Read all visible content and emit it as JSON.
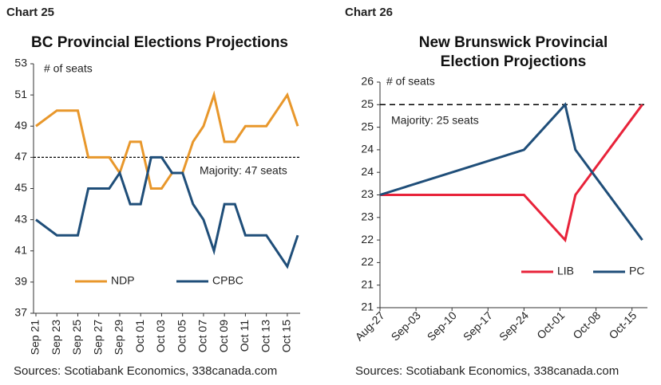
{
  "chart_data": [
    {
      "type": "line",
      "chart_label": "Chart 25",
      "title": "BC Provincial Elections Projections",
      "y_label": "# of seats",
      "categories": [
        "Sep 21",
        null,
        "Sep 23",
        null,
        "Sep 25",
        null,
        "Sep 27",
        null,
        "Sep 29",
        null,
        "Oct 01",
        null,
        "Oct 03",
        null,
        "Oct 05",
        null,
        "Oct 07",
        null,
        "Oct 09",
        null,
        "Oct 11",
        null,
        "Oct 13",
        null,
        "Oct 15",
        null
      ],
      "series": [
        {
          "name": "NDP",
          "color": "#e8972b",
          "values": [
            49,
            49.5,
            50,
            50,
            50,
            47,
            47,
            47,
            46,
            48,
            48,
            45,
            45,
            46,
            46,
            48,
            49,
            51,
            48,
            48,
            49,
            49,
            49,
            50,
            51,
            49
          ]
        },
        {
          "name": "CPBC",
          "color": "#1f4e79",
          "values": [
            43,
            42.5,
            42,
            42,
            42,
            45,
            45,
            45,
            46,
            44,
            44,
            47,
            47,
            46,
            46,
            44,
            43,
            41,
            44,
            44,
            42,
            42,
            42,
            41,
            40,
            42
          ]
        }
      ],
      "ylim": [
        37,
        53
      ],
      "yticks": [
        37,
        39,
        41,
        43,
        45,
        47,
        49,
        51,
        53
      ],
      "annotation": {
        "text": "Majority: 47 seats",
        "value": 47
      },
      "legend": "lower center",
      "grid": false,
      "source": "Sources: Scotiabank Economics, 338canada.com"
    },
    {
      "type": "line",
      "chart_label": "Chart 26",
      "title": "New Brunswick Provincial Election Projections",
      "y_label": "# of seats",
      "x": [
        "Aug-27",
        "Sep-24",
        "Oct-02",
        "Oct-04",
        "Oct-17"
      ],
      "xlim": [
        "Aug-27",
        "Oct-18"
      ],
      "xticks": [
        "Aug-27",
        "Sep-03",
        "Sep-10",
        "Sep-17",
        "Sep-24",
        "Oct-01",
        "Oct-08",
        "Oct-15"
      ],
      "series": [
        {
          "name": "LIB",
          "color": "#e8233a",
          "values": [
            23,
            23,
            22,
            23,
            25
          ]
        },
        {
          "name": "PC",
          "color": "#1f4e79",
          "values": [
            23,
            24,
            25,
            24,
            22
          ]
        }
      ],
      "ylim": [
        20.5,
        25.5
      ],
      "yticks": [
        {
          "value": 20.5,
          "label": "21"
        },
        21,
        {
          "value": 21.5,
          "label": "22"
        },
        22,
        {
          "value": 22.5,
          "label": "23"
        },
        23,
        {
          "value": 23.5,
          "label": "24"
        },
        24,
        {
          "value": 24.5,
          "label": "25"
        },
        25,
        {
          "value": 25.5,
          "label": "26"
        }
      ],
      "annotation": {
        "text": "Majority: 25 seats",
        "value": 25
      },
      "legend": "lower right",
      "grid": false,
      "source": "Sources: Scotiabank Economics, 338canada.com"
    }
  ]
}
